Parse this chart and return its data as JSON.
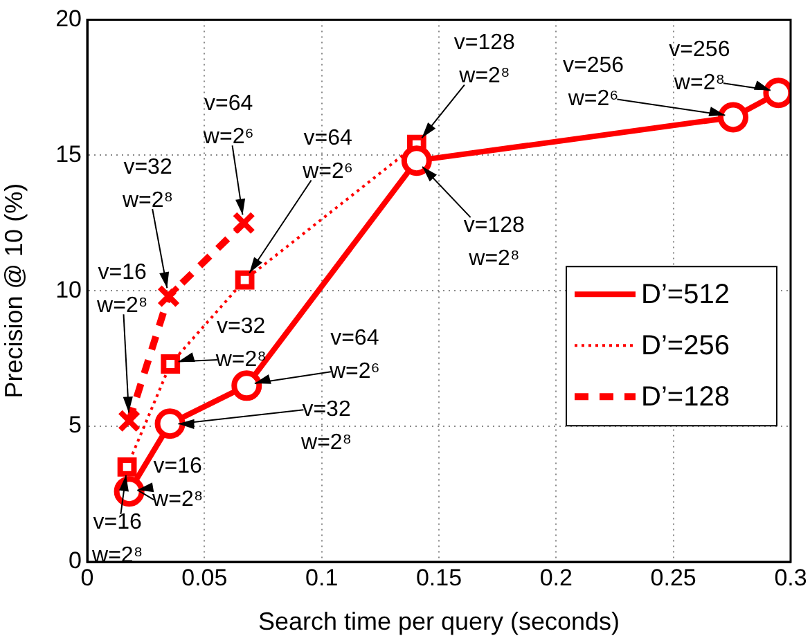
{
  "chart_data": {
    "type": "line",
    "xlabel": "Search time per query (seconds)",
    "ylabel": "Precision @ 10 (%)",
    "xlim": [
      0,
      0.3
    ],
    "xticks": [
      0,
      0.05,
      0.1,
      0.15,
      0.2,
      0.25,
      0.3
    ],
    "ylim": [
      0,
      20
    ],
    "yticks": [
      0,
      5,
      10,
      15,
      20
    ],
    "grid": true,
    "legend": "right",
    "series": [
      {
        "name": "D’=512",
        "color": "#ff0000",
        "marker": "circle",
        "line_style": "solid",
        "x": [
          0.0179,
          0.0353,
          0.068,
          0.1405,
          0.2755,
          0.2948
        ],
        "values": [
          2.6,
          5.1,
          6.5,
          14.8,
          16.4,
          17.3
        ]
      },
      {
        "name": "D’=256",
        "color": "#ff0000",
        "marker": "square",
        "line_style": "dotted",
        "x": [
          0.017,
          0.0355,
          0.0672,
          0.1405
        ],
        "values": [
          3.5,
          7.3,
          10.4,
          15.4
        ]
      },
      {
        "name": "D’=128",
        "color": "#ff0000",
        "marker": "cross",
        "line_style": "dashed",
        "x": [
          0.0179,
          0.0347,
          0.0668
        ],
        "values": [
          5.2,
          9.8,
          12.5
        ]
      }
    ],
    "annotations": [
      {
        "text": "v=16\nw=2⁸",
        "x": 0.0179,
        "y": 2.6
      },
      {
        "text": "v=16\nw=2⁸",
        "x": 0.017,
        "y": 3.5
      },
      {
        "text": "v=32\nw=2⁸",
        "x": 0.0353,
        "y": 5.1
      },
      {
        "text": "v=64\nw=2⁶",
        "x": 0.068,
        "y": 6.5
      },
      {
        "text": "v=32\nw=2⁸",
        "x": 0.0355,
        "y": 7.3
      },
      {
        "text": "v=64\nw=2⁶",
        "x": 0.0672,
        "y": 10.4
      },
      {
        "text": "v=64\nw=2⁶",
        "x": 0.0668,
        "y": 12.5
      },
      {
        "text": "v=32\nw=2⁸",
        "x": 0.0347,
        "y": 9.8
      },
      {
        "text": "v=16\nw=2⁸",
        "x": 0.0179,
        "y": 5.2
      },
      {
        "text": "v=128\nw=2⁸",
        "x": 0.1405,
        "y": 15.4
      },
      {
        "text": "v=128\nw=2⁸",
        "x": 0.1405,
        "y": 14.8
      },
      {
        "text": "v=256\nw=2⁶",
        "x": 0.2755,
        "y": 16.4
      },
      {
        "text": "v=256\nw=2⁸",
        "x": 0.2948,
        "y": 17.3
      }
    ]
  }
}
